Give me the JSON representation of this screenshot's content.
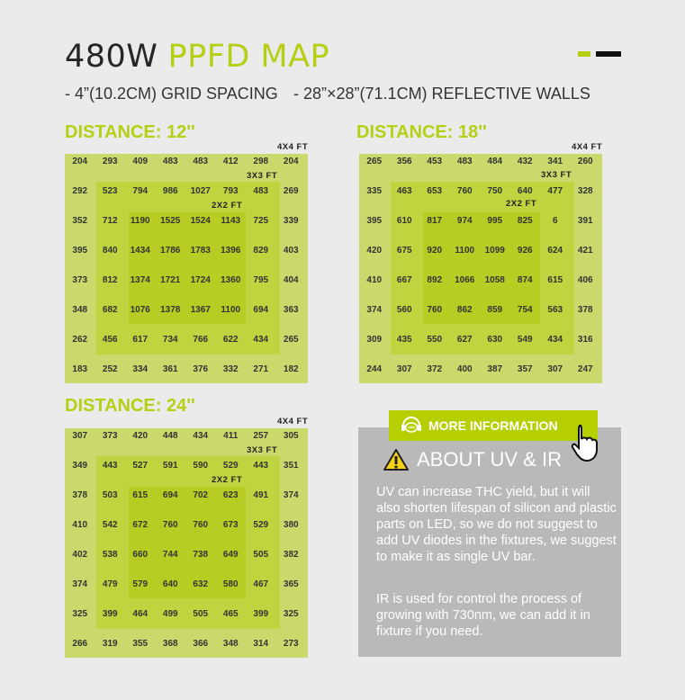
{
  "header": {
    "title_dark": "480W",
    "title_green": "PPFD MAP",
    "spec1": "- 4”(10.2CM) GRID SPACING",
    "spec2": "- 28”×28”(71.1CM) REFLECTIVE WALLS"
  },
  "colors": {
    "accent": "#b6cf14",
    "outer": "#cbd96c",
    "mid": "#bfd43e",
    "inner": "#b7cd24",
    "info_bg": "#b9b9b9"
  },
  "zones": {
    "z4": "4X4 FT",
    "z3": "3X3 FT",
    "z2": "2X2 FT"
  },
  "maps": [
    {
      "label": "DISTANCE: 12''",
      "rows": [
        [
          "204",
          "293",
          "409",
          "483",
          "483",
          "412",
          "298",
          "204"
        ],
        [
          "292",
          "523",
          "794",
          "986",
          "1027",
          "793",
          "483",
          "269"
        ],
        [
          "352",
          "712",
          "1190",
          "1525",
          "1524",
          "1143",
          "725",
          "339"
        ],
        [
          "395",
          "840",
          "1434",
          "1786",
          "1783",
          "1396",
          "829",
          "403"
        ],
        [
          "373",
          "812",
          "1374",
          "1721",
          "1724",
          "1360",
          "795",
          "404"
        ],
        [
          "348",
          "682",
          "1076",
          "1378",
          "1367",
          "1100",
          "694",
          "363"
        ],
        [
          "262",
          "456",
          "617",
          "734",
          "766",
          "622",
          "434",
          "265"
        ],
        [
          "183",
          "252",
          "334",
          "361",
          "376",
          "332",
          "271",
          "182"
        ]
      ]
    },
    {
      "label": "DISTANCE: 18''",
      "rows": [
        [
          "265",
          "356",
          "453",
          "483",
          "484",
          "432",
          "341",
          "260"
        ],
        [
          "335",
          "463",
          "653",
          "760",
          "750",
          "640",
          "477",
          "328"
        ],
        [
          "395",
          "610",
          "817",
          "974",
          "995",
          "825",
          "6",
          "391"
        ],
        [
          "420",
          "675",
          "920",
          "1100",
          "1099",
          "926",
          "624",
          "421"
        ],
        [
          "410",
          "667",
          "892",
          "1066",
          "1058",
          "874",
          "615",
          "406"
        ],
        [
          "374",
          "560",
          "760",
          "862",
          "859",
          "754",
          "563",
          "378"
        ],
        [
          "309",
          "435",
          "550",
          "627",
          "630",
          "549",
          "434",
          "316"
        ],
        [
          "244",
          "307",
          "372",
          "400",
          "387",
          "357",
          "307",
          "247"
        ]
      ]
    },
    {
      "label": "DISTANCE: 24''",
      "rows": [
        [
          "307",
          "373",
          "420",
          "448",
          "434",
          "411",
          "257",
          "305"
        ],
        [
          "349",
          "443",
          "527",
          "591",
          "590",
          "529",
          "443",
          "351"
        ],
        [
          "378",
          "503",
          "615",
          "694",
          "702",
          "623",
          "491",
          "374"
        ],
        [
          "410",
          "542",
          "672",
          "760",
          "760",
          "673",
          "529",
          "380"
        ],
        [
          "402",
          "538",
          "660",
          "744",
          "738",
          "649",
          "505",
          "382"
        ],
        [
          "374",
          "479",
          "579",
          "640",
          "632",
          "580",
          "467",
          "365"
        ],
        [
          "325",
          "399",
          "464",
          "499",
          "505",
          "465",
          "399",
          "325"
        ],
        [
          "266",
          "319",
          "355",
          "368",
          "366",
          "348",
          "314",
          "273"
        ]
      ]
    }
  ],
  "info": {
    "button_label": "MORE INFORMATION",
    "button_icon": "headset-chat-icon",
    "heading": "ABOUT UV & IR",
    "heading_icon": "warning-icon",
    "para1": "UV can increase THC yield, but it will also shorten lifespan of silicon and plastic parts on LED, so we do not suggest to add UV diodes in the fixtures, we suggest to make it as single UV bar.",
    "para2": "IR is used for control the process of growing with 730nm, we can add it in fixture if you need."
  }
}
